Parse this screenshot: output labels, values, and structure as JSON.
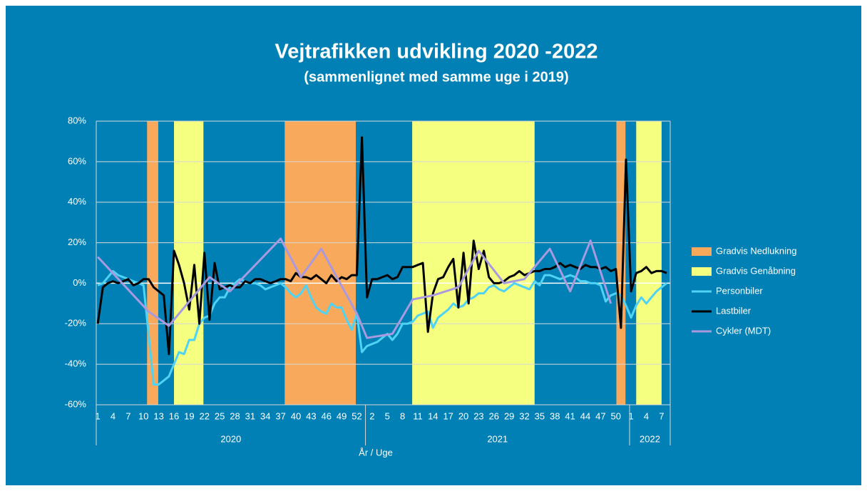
{
  "chart_data": {
    "type": "line",
    "title": "Vejtrafikken udvikling 2020 -2022",
    "subtitle": "(sammenlignet med samme uge i 2019)",
    "x_label": "År / Uge",
    "categories": [
      "1",
      null,
      null,
      "4",
      null,
      null,
      "7",
      null,
      null,
      "10",
      null,
      null,
      "13",
      null,
      null,
      "16",
      null,
      null,
      "19",
      null,
      null,
      "22",
      null,
      null,
      "25",
      null,
      null,
      "28",
      null,
      null,
      "31",
      null,
      null,
      "34",
      null,
      null,
      "37",
      null,
      null,
      "40",
      null,
      null,
      "43",
      null,
      null,
      "46",
      null,
      null,
      "49",
      null,
      null,
      "52",
      null,
      null,
      "2",
      null,
      null,
      "5",
      null,
      null,
      "8",
      null,
      null,
      "11",
      null,
      null,
      "14",
      null,
      null,
      "17",
      null,
      null,
      "20",
      null,
      null,
      "23",
      null,
      null,
      "26",
      null,
      null,
      "29",
      null,
      null,
      "32",
      null,
      null,
      "35",
      null,
      null,
      "38",
      null,
      null,
      "41",
      null,
      null,
      "44",
      null,
      null,
      "47",
      null,
      null,
      "50",
      null,
      null,
      "1",
      null,
      null,
      "4",
      null,
      null,
      "7",
      null
    ],
    "x_groups": [
      {
        "label": "2020",
        "count": 53
      },
      {
        "label": "2021",
        "count": 52
      },
      {
        "label": "2022",
        "count": 8
      }
    ],
    "ylim": [
      -60,
      80
    ],
    "yticks": [
      {
        "value": -60,
        "label": "-60%"
      },
      {
        "value": -40,
        "label": "-40%"
      },
      {
        "value": -20,
        "label": "-20%"
      },
      {
        "value": 0,
        "label": "0%"
      },
      {
        "value": 20,
        "label": "20%"
      },
      {
        "value": 40,
        "label": "40%"
      },
      {
        "value": 60,
        "label": "60%"
      },
      {
        "value": 80,
        "label": "80%"
      }
    ],
    "grid": true,
    "legend": "right",
    "series": [
      {
        "name": "Gradvis Nedlukning",
        "type": "band",
        "color": "#f9a95b",
        "ranges": [
          [
            9.7,
            11.9
          ],
          [
            36.8,
            50.8
          ],
          [
            102.1,
            103.9
          ]
        ]
      },
      {
        "name": "Gradvis Genåbning",
        "type": "band",
        "color": "#f5ff80",
        "ranges": [
          [
            15,
            20.8
          ],
          [
            61.9,
            86
          ],
          [
            106,
            111
          ]
        ]
      },
      {
        "name": "Personbiler",
        "color": "#4fd3f5",
        "values": [
          -1,
          0,
          3,
          6,
          4,
          3,
          2,
          1,
          0,
          -1,
          -25,
          -50,
          -50,
          -48,
          -46,
          -40,
          -34,
          -35,
          -28,
          -28,
          -20,
          -17,
          -16,
          -10,
          -7,
          -7,
          -2,
          0,
          2,
          1,
          0,
          0,
          -1,
          -3,
          -2,
          -1,
          0,
          -2,
          -5,
          -7,
          -5,
          -1,
          -7,
          -12,
          -14,
          -15,
          -10,
          -12,
          -12,
          -18,
          -23,
          -15,
          -34,
          -31,
          -30,
          -29,
          -27,
          -25,
          -28,
          -25,
          -20,
          -20,
          -19,
          -16,
          -15,
          -14,
          -22,
          -17,
          -15,
          -13,
          -10,
          -12,
          -11,
          -8,
          -7,
          -5,
          -5,
          -2,
          -1,
          -3,
          -4,
          -2,
          0,
          -1,
          -2,
          -3,
          1,
          -1,
          4,
          4,
          3,
          2,
          3,
          4,
          3,
          1,
          1,
          0,
          0,
          -1,
          -9,
          -6,
          -5,
          -6,
          -11,
          -17,
          -11,
          -7,
          -10,
          -7,
          -4,
          -2,
          0
        ]
      },
      {
        "name": "Lastbiler",
        "color": "#000000",
        "values": [
          -20,
          -2,
          0,
          1,
          0,
          1,
          2,
          -1,
          0,
          2,
          2,
          -2,
          -4,
          -6,
          -35,
          16,
          9,
          0,
          -13,
          9,
          -20,
          15,
          -18,
          10,
          -3,
          -2,
          -1,
          -2,
          -2,
          1,
          0,
          2,
          2,
          1,
          0,
          1,
          2,
          2,
          1,
          5,
          3,
          3,
          2,
          4,
          2,
          0,
          4,
          1,
          3,
          2,
          4,
          4,
          72,
          -7,
          2,
          2,
          3,
          4,
          2,
          3,
          8,
          8,
          8,
          9,
          10,
          -24,
          -5,
          2,
          3,
          8,
          12,
          -12,
          15,
          -10,
          21,
          7,
          16,
          3,
          0,
          0,
          1,
          3,
          4,
          6,
          4,
          5,
          6,
          6,
          7,
          7,
          8,
          10,
          8,
          9,
          8,
          7,
          9,
          8,
          8,
          7,
          8,
          6,
          7,
          -22,
          61,
          -4,
          5,
          6,
          8,
          5,
          6,
          6,
          5
        ]
      },
      {
        "name": "Cykler (MDT)",
        "color": "#a99ae0",
        "x": [
          0,
          10,
          14,
          22,
          26,
          36,
          40,
          44,
          51,
          53,
          58,
          62,
          66,
          71,
          75,
          80,
          84,
          89,
          93,
          97,
          101
        ],
        "values": [
          13,
          -14,
          -21,
          3,
          -4,
          22,
          3,
          17,
          -15,
          -27,
          -25,
          -8,
          -6,
          -2,
          16,
          0,
          2,
          17,
          -4,
          21,
          -10
        ]
      }
    ]
  }
}
